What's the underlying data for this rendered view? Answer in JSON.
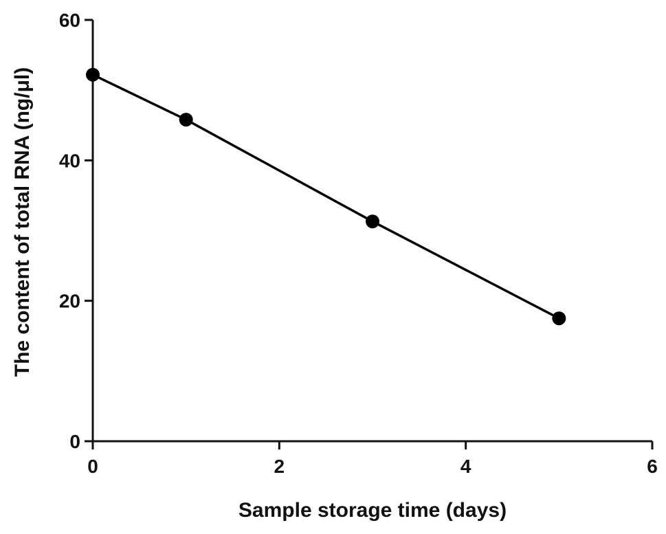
{
  "chart_data": {
    "type": "line",
    "title": "",
    "xlabel": "Sample storage time (days)",
    "ylabel": "The content of total RNA (ng/μl)",
    "xlim": [
      0,
      6
    ],
    "ylim": [
      0,
      60
    ],
    "x_ticks": [
      "0",
      "2",
      "4",
      "6"
    ],
    "y_ticks": [
      "0",
      "20",
      "40",
      "60"
    ],
    "grid": false,
    "legend": "none",
    "series": [
      {
        "x": [
          0,
          1,
          3,
          5
        ],
        "y": [
          52.2,
          45.8,
          31.3,
          17.5
        ],
        "marker": "circle",
        "color": "#000000"
      }
    ]
  }
}
